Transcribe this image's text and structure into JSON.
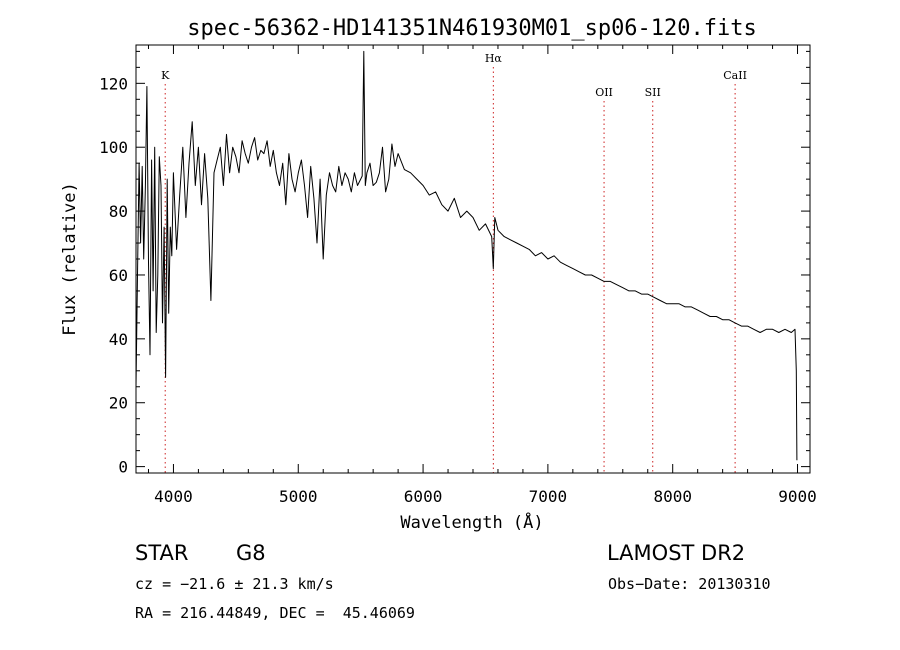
{
  "chart_data": {
    "type": "line",
    "title": "spec-56362-HD141351N461930M01_sp06-120.fits",
    "xlabel": "Wavelength (Å)",
    "ylabel": "Flux (relative)",
    "xlim": [
      3700,
      9100
    ],
    "ylim": [
      -2,
      132
    ],
    "x_ticks": [
      4000,
      5000,
      6000,
      7000,
      8000,
      9000
    ],
    "y_ticks": [
      0,
      20,
      40,
      60,
      80,
      100,
      120
    ],
    "grid": false,
    "line_color": "#000000",
    "marker_color": "#cc2222",
    "markers": [
      {
        "label": "K",
        "x": 3934
      },
      {
        "label": "Hα",
        "x": 6563
      },
      {
        "label": "OII",
        "x": 7450
      },
      {
        "label": "SII",
        "x": 7840
      },
      {
        "label": "CaII",
        "x": 8500
      }
    ],
    "series": [
      {
        "x": [
          3700,
          3712,
          3725,
          3737,
          3750,
          3762,
          3775,
          3787,
          3800,
          3812,
          3825,
          3837,
          3850,
          3862,
          3875,
          3887,
          3900,
          3912,
          3925,
          3937,
          3950,
          3962,
          3975,
          3987,
          4000,
          4025,
          4050,
          4075,
          4100,
          4125,
          4150,
          4175,
          4200,
          4225,
          4250,
          4275,
          4300,
          4325,
          4350,
          4375,
          4400,
          4425,
          4450,
          4475,
          4500,
          4525,
          4550,
          4575,
          4600,
          4625,
          4650,
          4675,
          4700,
          4725,
          4750,
          4775,
          4800,
          4825,
          4850,
          4875,
          4900,
          4925,
          4950,
          4975,
          5000,
          5025,
          5050,
          5075,
          5100,
          5125,
          5150,
          5175,
          5200,
          5225,
          5250,
          5275,
          5300,
          5325,
          5350,
          5375,
          5400,
          5425,
          5450,
          5475,
          5500,
          5512,
          5525,
          5537,
          5550,
          5575,
          5600,
          5625,
          5650,
          5675,
          5700,
          5725,
          5750,
          5775,
          5800,
          5850,
          5900,
          5950,
          6000,
          6050,
          6100,
          6150,
          6200,
          6250,
          6300,
          6350,
          6400,
          6450,
          6500,
          6550,
          6563,
          6575,
          6600,
          6650,
          6700,
          6750,
          6800,
          6850,
          6900,
          6950,
          7000,
          7050,
          7100,
          7150,
          7200,
          7250,
          7300,
          7350,
          7400,
          7450,
          7500,
          7550,
          7600,
          7650,
          7700,
          7750,
          7800,
          7850,
          7900,
          7950,
          8000,
          8050,
          8100,
          8150,
          8200,
          8250,
          8300,
          8350,
          8400,
          8450,
          8500,
          8550,
          8600,
          8650,
          8700,
          8750,
          8800,
          8850,
          8900,
          8950,
          8980,
          8990,
          8995
        ],
        "values": [
          25,
          60,
          95,
          70,
          94,
          65,
          88,
          119,
          64,
          35,
          96,
          55,
          100,
          42,
          60,
          97,
          88,
          45,
          75,
          28,
          90,
          48,
          75,
          66,
          92,
          68,
          85,
          100,
          78,
          95,
          108,
          88,
          100,
          82,
          98,
          84,
          52,
          92,
          96,
          100,
          88,
          104,
          92,
          100,
          97,
          92,
          102,
          98,
          95,
          100,
          103,
          96,
          99,
          98,
          102,
          94,
          99,
          92,
          88,
          95,
          82,
          98,
          90,
          86,
          92,
          96,
          88,
          78,
          94,
          84,
          70,
          90,
          65,
          85,
          92,
          88,
          86,
          94,
          88,
          92,
          90,
          86,
          92,
          88,
          90,
          91,
          130,
          88,
          92,
          95,
          88,
          89,
          92,
          100,
          86,
          90,
          101,
          94,
          98,
          93,
          92,
          90,
          88,
          85,
          86,
          82,
          80,
          84,
          78,
          80,
          78,
          74,
          76,
          72,
          62,
          78,
          74,
          72,
          71,
          70,
          69,
          68,
          66,
          67,
          65,
          66,
          64,
          63,
          62,
          61,
          60,
          60,
          59,
          58,
          58,
          57,
          56,
          55,
          55,
          54,
          54,
          53,
          52,
          51,
          51,
          51,
          50,
          50,
          49,
          48,
          47,
          47,
          46,
          46,
          45,
          44,
          44,
          43,
          42,
          43,
          43,
          42,
          43,
          42,
          43,
          30,
          2
        ]
      }
    ]
  },
  "info": {
    "object_class": "STAR",
    "subclass": "G8",
    "survey": "LAMOST DR2",
    "redshift": "cz = −21.6 ± 21.3 km/s",
    "obs_date": "Obs−Date: 20130310",
    "coords": "RA = 216.44849, DEC =  45.46069"
  }
}
